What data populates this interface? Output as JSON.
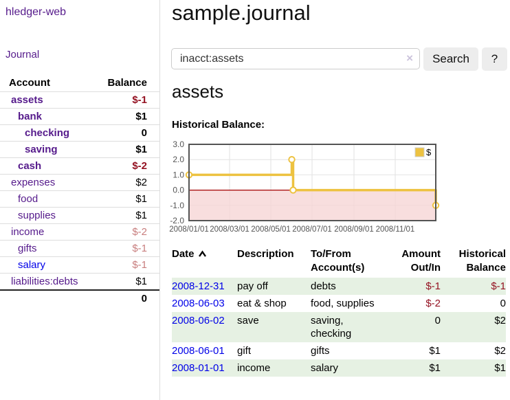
{
  "app": {
    "brand": "hledger-web"
  },
  "sidebar": {
    "nav_journal": "Journal",
    "accounts": {
      "col_account": "Account",
      "col_balance": "Balance",
      "rows": [
        {
          "name": "assets",
          "depth": 1,
          "bold": true,
          "balance": "$-1",
          "negative": "strong"
        },
        {
          "name": "bank",
          "depth": 2,
          "bold": true,
          "balance": "$1",
          "negative": null
        },
        {
          "name": "checking",
          "depth": 3,
          "bold": true,
          "balance": "0",
          "negative": null
        },
        {
          "name": "saving",
          "depth": 3,
          "bold": true,
          "balance": "$1",
          "negative": null
        },
        {
          "name": "cash",
          "depth": 2,
          "bold": true,
          "balance": "$-2",
          "negative": "strong"
        },
        {
          "name": "expenses",
          "depth": 1,
          "bold": false,
          "balance": "$2",
          "negative": null
        },
        {
          "name": "food",
          "depth": 2,
          "bold": false,
          "balance": "$1",
          "negative": null
        },
        {
          "name": "supplies",
          "depth": 2,
          "bold": false,
          "balance": "$1",
          "negative": null
        },
        {
          "name": "income",
          "depth": 1,
          "bold": false,
          "balance": "$-2",
          "negative": "muted"
        },
        {
          "name": "gifts",
          "depth": 2,
          "bold": false,
          "balance": "$-1",
          "negative": "muted"
        },
        {
          "name": "salary",
          "depth": 2,
          "bold": false,
          "link_blue": true,
          "balance": "$-1",
          "negative": "muted"
        },
        {
          "name": "liabilities:debts",
          "depth": 1,
          "bold": false,
          "balance": "$1",
          "negative": null
        }
      ],
      "total": "0"
    }
  },
  "header": {
    "title": "sample.journal",
    "search": {
      "value": "inacct:assets",
      "clear_label": "×",
      "button_label": "Search",
      "help_label": "?"
    }
  },
  "main": {
    "account_heading": "assets",
    "register": {
      "headers": [
        "Date",
        "Description",
        "To/From Account(s)",
        "Amount Out/In",
        "Historical Balance"
      ],
      "sort": "ascending",
      "rows": [
        {
          "date": "2008-12-31",
          "description": "pay off",
          "accounts": "debts",
          "amount": "$-1",
          "amount_negative": true,
          "balance": "$-1",
          "balance_negative": true
        },
        {
          "date": "2008-06-03",
          "description": "eat & shop",
          "accounts": "food, supplies",
          "amount": "$-2",
          "amount_negative": true,
          "balance": "0",
          "balance_negative": false
        },
        {
          "date": "2008-06-02",
          "description": "save",
          "accounts": "saving, checking",
          "amount": "0",
          "amount_negative": false,
          "balance": "$2",
          "balance_negative": false
        },
        {
          "date": "2008-06-01",
          "description": "gift",
          "accounts": "gifts",
          "amount": "$1",
          "amount_negative": false,
          "balance": "$2",
          "balance_negative": false
        },
        {
          "date": "2008-01-01",
          "description": "income",
          "accounts": "salary",
          "amount": "$1",
          "amount_negative": false,
          "balance": "$1",
          "balance_negative": false
        }
      ]
    }
  },
  "chart_data": {
    "type": "line",
    "title": "Historical Balance:",
    "step": true,
    "grid": true,
    "legend": [
      {
        "label": "$",
        "color": "#EDC240"
      }
    ],
    "legend_position": "top-right",
    "xlim": [
      "2008-01-01",
      "2008-12-31"
    ],
    "ylim": [
      -2,
      3
    ],
    "x_ticks": [
      "2008/01/01",
      "2008/03/01",
      "2008/05/01",
      "2008/07/01",
      "2008/09/01",
      "2008/11/01"
    ],
    "y_ticks": [
      "3.0",
      "2.0",
      "1.0",
      "0.0",
      "-1.0",
      "-2.0"
    ],
    "series": [
      {
        "name": "$",
        "color": "#EDC240",
        "points": [
          [
            "2008-01-01",
            1
          ],
          [
            "2008-06-01",
            2
          ],
          [
            "2008-06-03",
            0
          ],
          [
            "2008-12-31",
            -1
          ]
        ]
      }
    ],
    "negative_region": {
      "from": 0,
      "fill": "#F6D6D6"
    },
    "zero_line_color": "#A40000",
    "grid_color": "#E2E2E2",
    "border_color": "#545454",
    "tick_color": "#545454"
  }
}
